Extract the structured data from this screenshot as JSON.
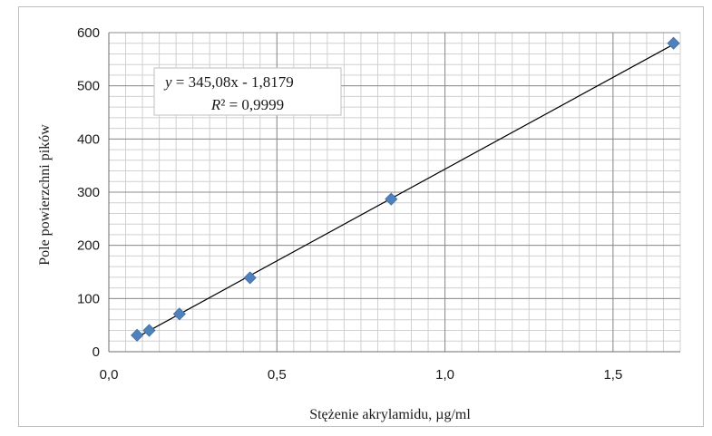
{
  "chart_data": {
    "type": "scatter",
    "xlabel": "Stężenie akrylamidu, µg/ml",
    "ylabel": "Pole powierzchni pików",
    "xlim": [
      0,
      1.7
    ],
    "ylim": [
      0,
      600
    ],
    "x_ticks": [
      0.0,
      0.5,
      1.0,
      1.5
    ],
    "x_tick_labels": [
      "0,0",
      "0,5",
      "1,0",
      "1,5"
    ],
    "y_ticks": [
      0,
      100,
      200,
      300,
      400,
      500,
      600
    ],
    "y_tick_labels": [
      "0",
      "100",
      "200",
      "300",
      "400",
      "500",
      "600"
    ],
    "grid": true,
    "marker_color": "#4f81bd",
    "series": [
      {
        "x": [
          0.084,
          0.12,
          0.21,
          0.42,
          0.84,
          1.68
        ],
        "y": [
          31,
          40,
          71,
          139,
          287,
          580
        ]
      }
    ],
    "trendline": {
      "slope": 345.08,
      "intercept": -1.8179,
      "x_range": [
        0.084,
        1.68
      ],
      "equation_prefix": "y",
      "equation_rest": " = 345,08x - 1,8179",
      "r2_prefix": "R² = ",
      "r2_value": "0,9999",
      "r2_label": "R"
    }
  }
}
